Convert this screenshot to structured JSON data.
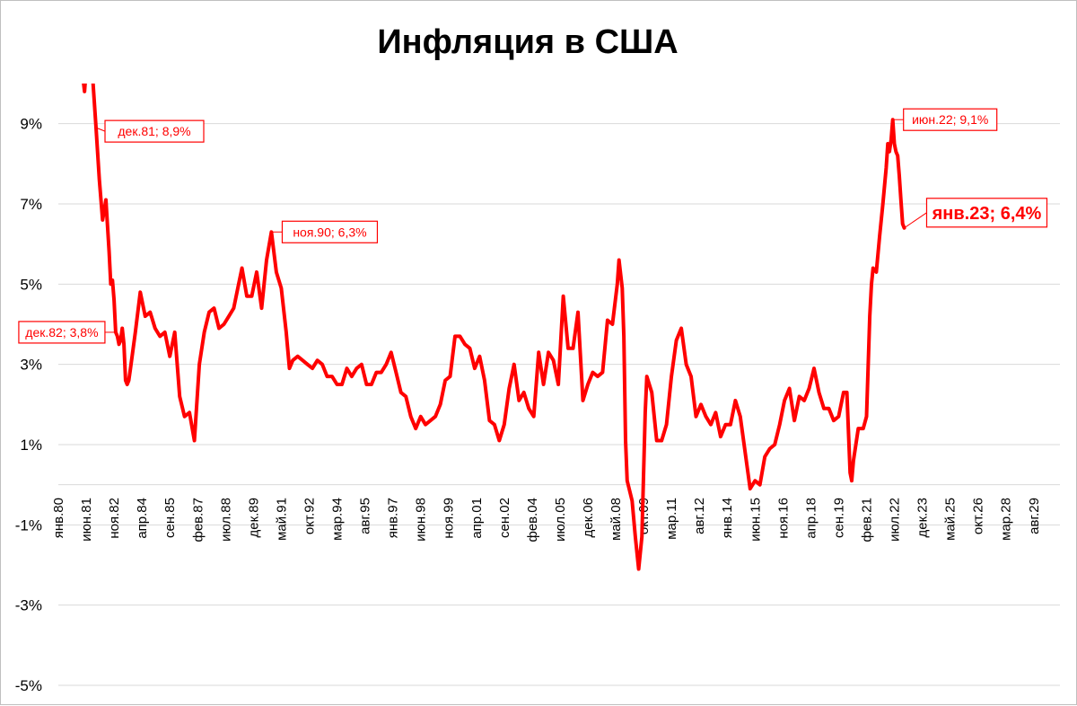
{
  "chart_data": {
    "type": "line",
    "title": "Инфляция в США",
    "xlabel": "",
    "ylabel": "",
    "x_range": [
      "1980-01",
      "2030-12"
    ],
    "ylim": [
      -5,
      10
    ],
    "y_ticks": [
      {
        "value": 9,
        "label": "9%"
      },
      {
        "value": 7,
        "label": "7%"
      },
      {
        "value": 5,
        "label": "5%"
      },
      {
        "value": 3,
        "label": "3%"
      },
      {
        "value": 1,
        "label": "1%"
      },
      {
        "value": -1,
        "label": "-1%"
      },
      {
        "value": -3,
        "label": "-3%"
      },
      {
        "value": -5,
        "label": "-5%"
      }
    ],
    "x_ticks": [
      {
        "date": "1980-01",
        "label": "янв.80"
      },
      {
        "date": "1981-06",
        "label": "июн.81"
      },
      {
        "date": "1982-11",
        "label": "ноя.82"
      },
      {
        "date": "1984-04",
        "label": "апр.84"
      },
      {
        "date": "1985-09",
        "label": "сен.85"
      },
      {
        "date": "1987-02",
        "label": "фев.87"
      },
      {
        "date": "1988-07",
        "label": "июл.88"
      },
      {
        "date": "1989-12",
        "label": "дек.89"
      },
      {
        "date": "1991-05",
        "label": "май.91"
      },
      {
        "date": "1992-10",
        "label": "окт.92"
      },
      {
        "date": "1994-03",
        "label": "мар.94"
      },
      {
        "date": "1995-08",
        "label": "авг.95"
      },
      {
        "date": "1997-01",
        "label": "янв.97"
      },
      {
        "date": "1998-06",
        "label": "июн.98"
      },
      {
        "date": "1999-11",
        "label": "ноя.99"
      },
      {
        "date": "2001-04",
        "label": "апр.01"
      },
      {
        "date": "2002-09",
        "label": "сен.02"
      },
      {
        "date": "2004-02",
        "label": "фев.04"
      },
      {
        "date": "2005-07",
        "label": "июл.05"
      },
      {
        "date": "2006-12",
        "label": "дек.06"
      },
      {
        "date": "2008-05",
        "label": "май.08"
      },
      {
        "date": "2009-10",
        "label": "окт.09"
      },
      {
        "date": "2011-03",
        "label": "мар.11"
      },
      {
        "date": "2012-08",
        "label": "авг.12"
      },
      {
        "date": "2014-01",
        "label": "янв.14"
      },
      {
        "date": "2015-06",
        "label": "июн.15"
      },
      {
        "date": "2016-11",
        "label": "ноя.16"
      },
      {
        "date": "2018-04",
        "label": "апр.18"
      },
      {
        "date": "2019-09",
        "label": "сен.19"
      },
      {
        "date": "2021-02",
        "label": "фев.21"
      },
      {
        "date": "2022-07",
        "label": "июл.22"
      },
      {
        "date": "2023-12",
        "label": "дек.23"
      },
      {
        "date": "2025-05",
        "label": "май.25"
      },
      {
        "date": "2026-10",
        "label": "окт.26"
      },
      {
        "date": "2028-03",
        "label": "мар.28"
      },
      {
        "date": "2029-08",
        "label": "авг.29"
      }
    ],
    "grid": {
      "horizontal": true,
      "vertical": false
    },
    "legend": "none",
    "series": [
      {
        "color": "#ff0000",
        "points": [
          [
            "1981-01",
            11.8
          ],
          [
            "1981-03",
            10.5
          ],
          [
            "1981-05",
            9.8
          ],
          [
            "1981-06",
            10.4
          ],
          [
            "1981-08",
            10.8
          ],
          [
            "1981-10",
            10.1
          ],
          [
            "1981-12",
            8.9
          ],
          [
            "1982-02",
            7.6
          ],
          [
            "1982-04",
            6.6
          ],
          [
            "1982-06",
            7.1
          ],
          [
            "1982-08",
            5.8
          ],
          [
            "1982-09",
            5.0
          ],
          [
            "1982-10",
            5.1
          ],
          [
            "1982-11",
            4.6
          ],
          [
            "1982-12",
            3.8
          ],
          [
            "1983-01",
            3.7
          ],
          [
            "1983-02",
            3.5
          ],
          [
            "1983-03",
            3.6
          ],
          [
            "1983-04",
            3.9
          ],
          [
            "1983-05",
            3.5
          ],
          [
            "1983-06",
            2.6
          ],
          [
            "1983-07",
            2.5
          ],
          [
            "1983-08",
            2.6
          ],
          [
            "1983-09",
            2.9
          ],
          [
            "1983-12",
            3.8
          ],
          [
            "1984-03",
            4.8
          ],
          [
            "1984-06",
            4.2
          ],
          [
            "1984-09",
            4.3
          ],
          [
            "1984-12",
            3.9
          ],
          [
            "1985-03",
            3.7
          ],
          [
            "1985-06",
            3.8
          ],
          [
            "1985-09",
            3.2
          ],
          [
            "1985-12",
            3.8
          ],
          [
            "1986-03",
            2.2
          ],
          [
            "1986-06",
            1.7
          ],
          [
            "1986-09",
            1.8
          ],
          [
            "1986-12",
            1.1
          ],
          [
            "1987-03",
            3.0
          ],
          [
            "1987-06",
            3.8
          ],
          [
            "1987-09",
            4.3
          ],
          [
            "1987-12",
            4.4
          ],
          [
            "1988-03",
            3.9
          ],
          [
            "1988-06",
            4.0
          ],
          [
            "1988-09",
            4.2
          ],
          [
            "1988-12",
            4.4
          ],
          [
            "1989-03",
            5.0
          ],
          [
            "1989-05",
            5.4
          ],
          [
            "1989-08",
            4.7
          ],
          [
            "1989-11",
            4.7
          ],
          [
            "1990-02",
            5.3
          ],
          [
            "1990-05",
            4.4
          ],
          [
            "1990-08",
            5.6
          ],
          [
            "1990-11",
            6.3
          ],
          [
            "1991-02",
            5.3
          ],
          [
            "1991-05",
            4.9
          ],
          [
            "1991-08",
            3.8
          ],
          [
            "1991-10",
            2.9
          ],
          [
            "1991-12",
            3.1
          ],
          [
            "1992-03",
            3.2
          ],
          [
            "1992-06",
            3.1
          ],
          [
            "1992-09",
            3.0
          ],
          [
            "1992-12",
            2.9
          ],
          [
            "1993-03",
            3.1
          ],
          [
            "1993-06",
            3.0
          ],
          [
            "1993-09",
            2.7
          ],
          [
            "1993-12",
            2.7
          ],
          [
            "1994-03",
            2.5
          ],
          [
            "1994-06",
            2.5
          ],
          [
            "1994-09",
            2.9
          ],
          [
            "1994-12",
            2.7
          ],
          [
            "1995-03",
            2.9
          ],
          [
            "1995-06",
            3.0
          ],
          [
            "1995-09",
            2.5
          ],
          [
            "1995-12",
            2.5
          ],
          [
            "1996-03",
            2.8
          ],
          [
            "1996-06",
            2.8
          ],
          [
            "1996-09",
            3.0
          ],
          [
            "1996-12",
            3.3
          ],
          [
            "1997-03",
            2.8
          ],
          [
            "1997-06",
            2.3
          ],
          [
            "1997-09",
            2.2
          ],
          [
            "1997-12",
            1.7
          ],
          [
            "1998-03",
            1.4
          ],
          [
            "1998-06",
            1.7
          ],
          [
            "1998-09",
            1.5
          ],
          [
            "1998-12",
            1.6
          ],
          [
            "1999-03",
            1.7
          ],
          [
            "1999-06",
            2.0
          ],
          [
            "1999-09",
            2.6
          ],
          [
            "1999-12",
            2.7
          ],
          [
            "2000-03",
            3.7
          ],
          [
            "2000-06",
            3.7
          ],
          [
            "2000-09",
            3.5
          ],
          [
            "2000-12",
            3.4
          ],
          [
            "2001-03",
            2.9
          ],
          [
            "2001-06",
            3.2
          ],
          [
            "2001-09",
            2.6
          ],
          [
            "2001-12",
            1.6
          ],
          [
            "2002-03",
            1.5
          ],
          [
            "2002-06",
            1.1
          ],
          [
            "2002-09",
            1.5
          ],
          [
            "2002-12",
            2.4
          ],
          [
            "2003-03",
            3.0
          ],
          [
            "2003-06",
            2.1
          ],
          [
            "2003-09",
            2.3
          ],
          [
            "2003-12",
            1.9
          ],
          [
            "2004-03",
            1.7
          ],
          [
            "2004-06",
            3.3
          ],
          [
            "2004-09",
            2.5
          ],
          [
            "2004-12",
            3.3
          ],
          [
            "2005-03",
            3.1
          ],
          [
            "2005-06",
            2.5
          ],
          [
            "2005-09",
            4.7
          ],
          [
            "2005-12",
            3.4
          ],
          [
            "2006-03",
            3.4
          ],
          [
            "2006-06",
            4.3
          ],
          [
            "2006-09",
            2.1
          ],
          [
            "2006-12",
            2.5
          ],
          [
            "2007-03",
            2.8
          ],
          [
            "2007-06",
            2.7
          ],
          [
            "2007-09",
            2.8
          ],
          [
            "2007-12",
            4.1
          ],
          [
            "2008-03",
            4.0
          ],
          [
            "2008-06",
            5.0
          ],
          [
            "2008-07",
            5.6
          ],
          [
            "2008-09",
            4.9
          ],
          [
            "2008-10",
            3.7
          ],
          [
            "2008-11",
            1.1
          ],
          [
            "2008-12",
            0.1
          ],
          [
            "2009-03",
            -0.4
          ],
          [
            "2009-05",
            -1.3
          ],
          [
            "2009-07",
            -2.1
          ],
          [
            "2009-09",
            -1.3
          ],
          [
            "2009-11",
            1.8
          ],
          [
            "2009-12",
            2.7
          ],
          [
            "2010-03",
            2.3
          ],
          [
            "2010-06",
            1.1
          ],
          [
            "2010-09",
            1.1
          ],
          [
            "2010-12",
            1.5
          ],
          [
            "2011-03",
            2.7
          ],
          [
            "2011-06",
            3.6
          ],
          [
            "2011-09",
            3.9
          ],
          [
            "2011-12",
            3.0
          ],
          [
            "2012-03",
            2.7
          ],
          [
            "2012-06",
            1.7
          ],
          [
            "2012-09",
            2.0
          ],
          [
            "2012-12",
            1.7
          ],
          [
            "2013-03",
            1.5
          ],
          [
            "2013-06",
            1.8
          ],
          [
            "2013-09",
            1.2
          ],
          [
            "2013-12",
            1.5
          ],
          [
            "2014-03",
            1.5
          ],
          [
            "2014-06",
            2.1
          ],
          [
            "2014-09",
            1.7
          ],
          [
            "2014-12",
            0.8
          ],
          [
            "2015-03",
            -0.1
          ],
          [
            "2015-06",
            0.1
          ],
          [
            "2015-09",
            0.0
          ],
          [
            "2015-12",
            0.7
          ],
          [
            "2016-03",
            0.9
          ],
          [
            "2016-06",
            1.0
          ],
          [
            "2016-09",
            1.5
          ],
          [
            "2016-12",
            2.1
          ],
          [
            "2017-03",
            2.4
          ],
          [
            "2017-06",
            1.6
          ],
          [
            "2017-09",
            2.2
          ],
          [
            "2017-12",
            2.1
          ],
          [
            "2018-03",
            2.4
          ],
          [
            "2018-06",
            2.9
          ],
          [
            "2018-09",
            2.3
          ],
          [
            "2018-12",
            1.9
          ],
          [
            "2019-03",
            1.9
          ],
          [
            "2019-06",
            1.6
          ],
          [
            "2019-09",
            1.7
          ],
          [
            "2019-12",
            2.3
          ],
          [
            "2020-02",
            2.3
          ],
          [
            "2020-04",
            0.3
          ],
          [
            "2020-05",
            0.1
          ],
          [
            "2020-06",
            0.6
          ],
          [
            "2020-09",
            1.4
          ],
          [
            "2020-12",
            1.4
          ],
          [
            "2021-02",
            1.7
          ],
          [
            "2021-04",
            4.2
          ],
          [
            "2021-05",
            5.0
          ],
          [
            "2021-06",
            5.4
          ],
          [
            "2021-08",
            5.3
          ],
          [
            "2021-10",
            6.2
          ],
          [
            "2021-12",
            7.0
          ],
          [
            "2022-02",
            7.9
          ],
          [
            "2022-03",
            8.5
          ],
          [
            "2022-04",
            8.3
          ],
          [
            "2022-05",
            8.6
          ],
          [
            "2022-06",
            9.1
          ],
          [
            "2022-07",
            8.5
          ],
          [
            "2022-08",
            8.3
          ],
          [
            "2022-09",
            8.2
          ],
          [
            "2022-10",
            7.7
          ],
          [
            "2022-11",
            7.1
          ],
          [
            "2022-12",
            6.5
          ],
          [
            "2023-01",
            6.4
          ]
        ]
      }
    ],
    "annotations": [
      {
        "date": "1981-12",
        "value": 8.9,
        "label": "дек.81; 8,9%",
        "size": "normal"
      },
      {
        "date": "1982-12",
        "value": 3.8,
        "label": "дек.82; 3,8%",
        "size": "normal"
      },
      {
        "date": "1990-11",
        "value": 6.3,
        "label": "ноя.90; 6,3%",
        "size": "normal"
      },
      {
        "date": "2022-06",
        "value": 9.1,
        "label": "июн.22; 9,1%",
        "size": "normal"
      },
      {
        "date": "2023-01",
        "value": 6.4,
        "label": "янв.23; 6,4%",
        "size": "large"
      }
    ]
  }
}
